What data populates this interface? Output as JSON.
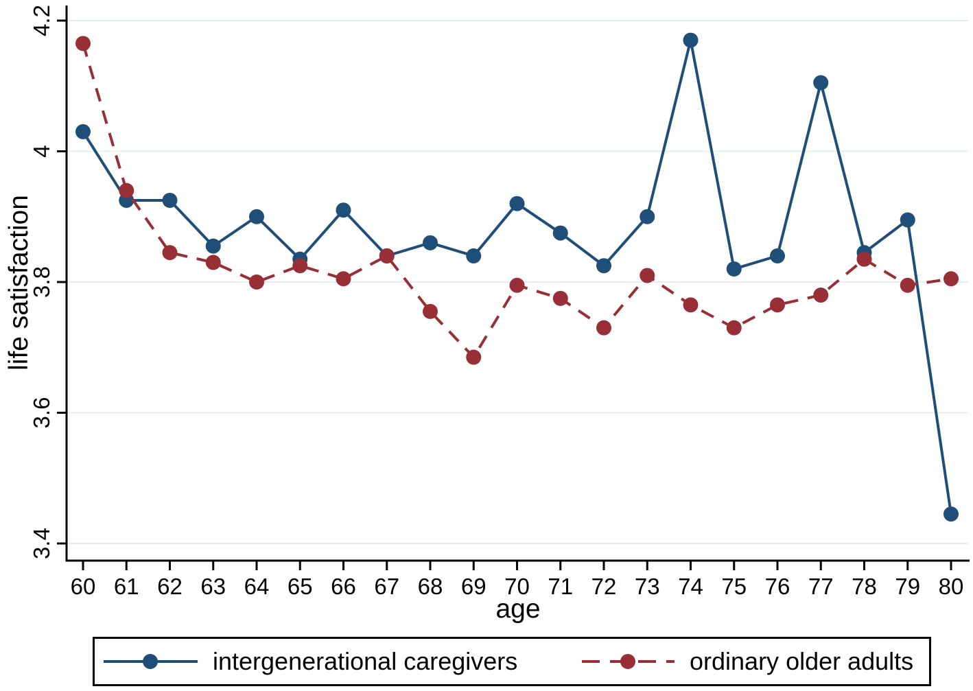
{
  "figure": {
    "background": "#ffffff",
    "axis_color": "#000000",
    "gridline_color": "#e6edf0"
  },
  "legend": {
    "items": [
      {
        "label": "intergenerational caregivers",
        "color": "#1f4e79",
        "style": "solid",
        "marker": "circle"
      },
      {
        "label": "ordinary older adults",
        "color": "#992f36",
        "style": "dashed",
        "marker": "circle"
      }
    ]
  },
  "chart_data": {
    "type": "line",
    "title": "",
    "xlabel": "age",
    "ylabel": "life satisfaction",
    "x": [
      60,
      61,
      62,
      63,
      64,
      65,
      66,
      67,
      68,
      69,
      70,
      71,
      72,
      73,
      74,
      75,
      76,
      77,
      78,
      79,
      80
    ],
    "xtick_labels": [
      "60",
      "61",
      "62",
      "63",
      "64",
      "65",
      "66",
      "67",
      "68",
      "69",
      "70",
      "71",
      "72",
      "73",
      "74",
      "75",
      "76",
      "77",
      "78",
      "79",
      "80"
    ],
    "yticks": [
      3.4,
      3.6,
      3.8,
      4.0,
      4.2
    ],
    "ytick_labels": [
      "3.4",
      "3.6",
      "3.8",
      "4",
      "4.2"
    ],
    "ylim": [
      3.375,
      4.223
    ],
    "xlim": [
      59.6,
      80.4
    ],
    "grid": "horizontal",
    "legend_position": "bottom",
    "series": [
      {
        "name": "intergenerational caregivers",
        "color": "#1f4e79",
        "line_style": "solid",
        "marker": "circle",
        "values": [
          4.03,
          3.925,
          3.925,
          3.855,
          3.9,
          3.835,
          3.91,
          3.84,
          3.86,
          3.84,
          3.92,
          3.875,
          3.825,
          3.9,
          4.17,
          3.82,
          3.84,
          4.105,
          3.845,
          3.895,
          3.445
        ]
      },
      {
        "name": "ordinary older adults",
        "color": "#992f36",
        "line_style": "dashed",
        "marker": "circle",
        "values": [
          4.165,
          3.94,
          3.845,
          3.83,
          3.8,
          3.825,
          3.805,
          3.84,
          3.755,
          3.685,
          3.795,
          3.775,
          3.73,
          3.81,
          3.765,
          3.73,
          3.765,
          3.78,
          3.835,
          3.795,
          3.805
        ]
      }
    ]
  }
}
